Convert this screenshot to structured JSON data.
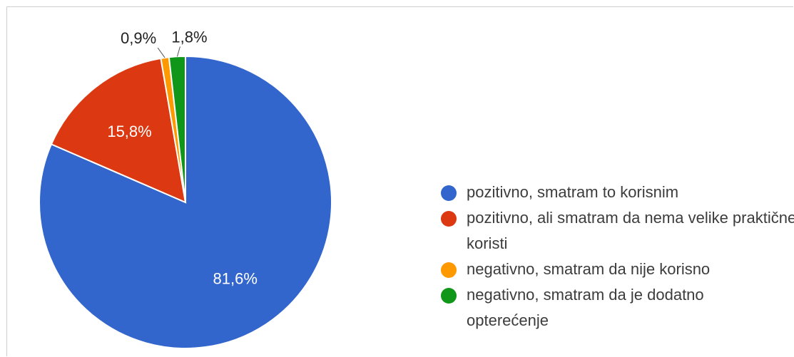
{
  "chart_data": {
    "type": "pie",
    "title": "",
    "slices": [
      {
        "label": "pozitivno, smatram to korisnim",
        "value": 81.6,
        "value_label": "81,6%",
        "color": "#3366cc"
      },
      {
        "label": "pozitivno, ali smatram da nema velike praktične koristi",
        "value": 15.8,
        "value_label": "15,8%",
        "color": "#dc3912"
      },
      {
        "label": "negativno, smatram da nije korisno",
        "value": 0.9,
        "value_label": "0,9%",
        "color": "#ff9900"
      },
      {
        "label": "negativno, smatram da je dodatno opterećenje",
        "value": 1.8,
        "value_label": "1,8%",
        "color": "#109618"
      }
    ],
    "legend_position": "right"
  }
}
